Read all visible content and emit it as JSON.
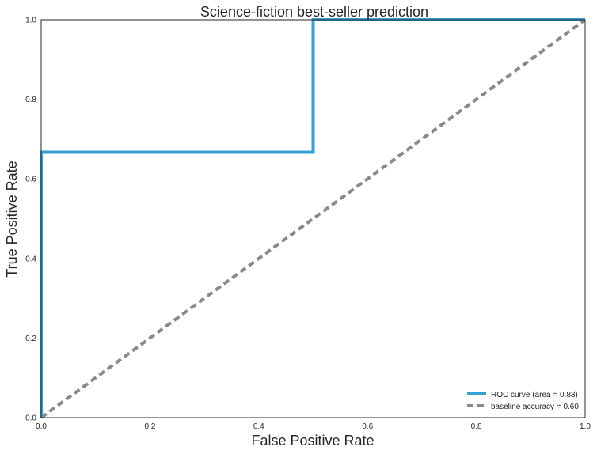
{
  "chart_data": {
    "type": "line",
    "title": "Science-fiction best-seller prediction",
    "xlabel": "False Positive Rate",
    "ylabel": "True Positive Rate",
    "xlim": [
      0.0,
      1.0
    ],
    "ylim": [
      0.0,
      1.0
    ],
    "xticks": [
      "0.0",
      "0.2",
      "0.4",
      "0.6",
      "0.8",
      "1.0"
    ],
    "yticks": [
      "0.0",
      "0.2",
      "0.4",
      "0.6",
      "0.8",
      "1.0"
    ],
    "grid": false,
    "legend_position": "lower-right",
    "series": [
      {
        "name": "ROC curve (area = 0.83)",
        "style": "solid",
        "color": "#34a2d4",
        "x": [
          0.0,
          0.0,
          0.0,
          0.5,
          0.5,
          1.0
        ],
        "y": [
          0.0,
          0.667,
          0.667,
          0.667,
          1.0,
          1.0
        ]
      },
      {
        "name": "baseline accuracy = 0.60",
        "style": "dashed",
        "color": "#898989",
        "x": [
          0.0,
          1.0
        ],
        "y": [
          0.0,
          1.0
        ]
      }
    ]
  }
}
